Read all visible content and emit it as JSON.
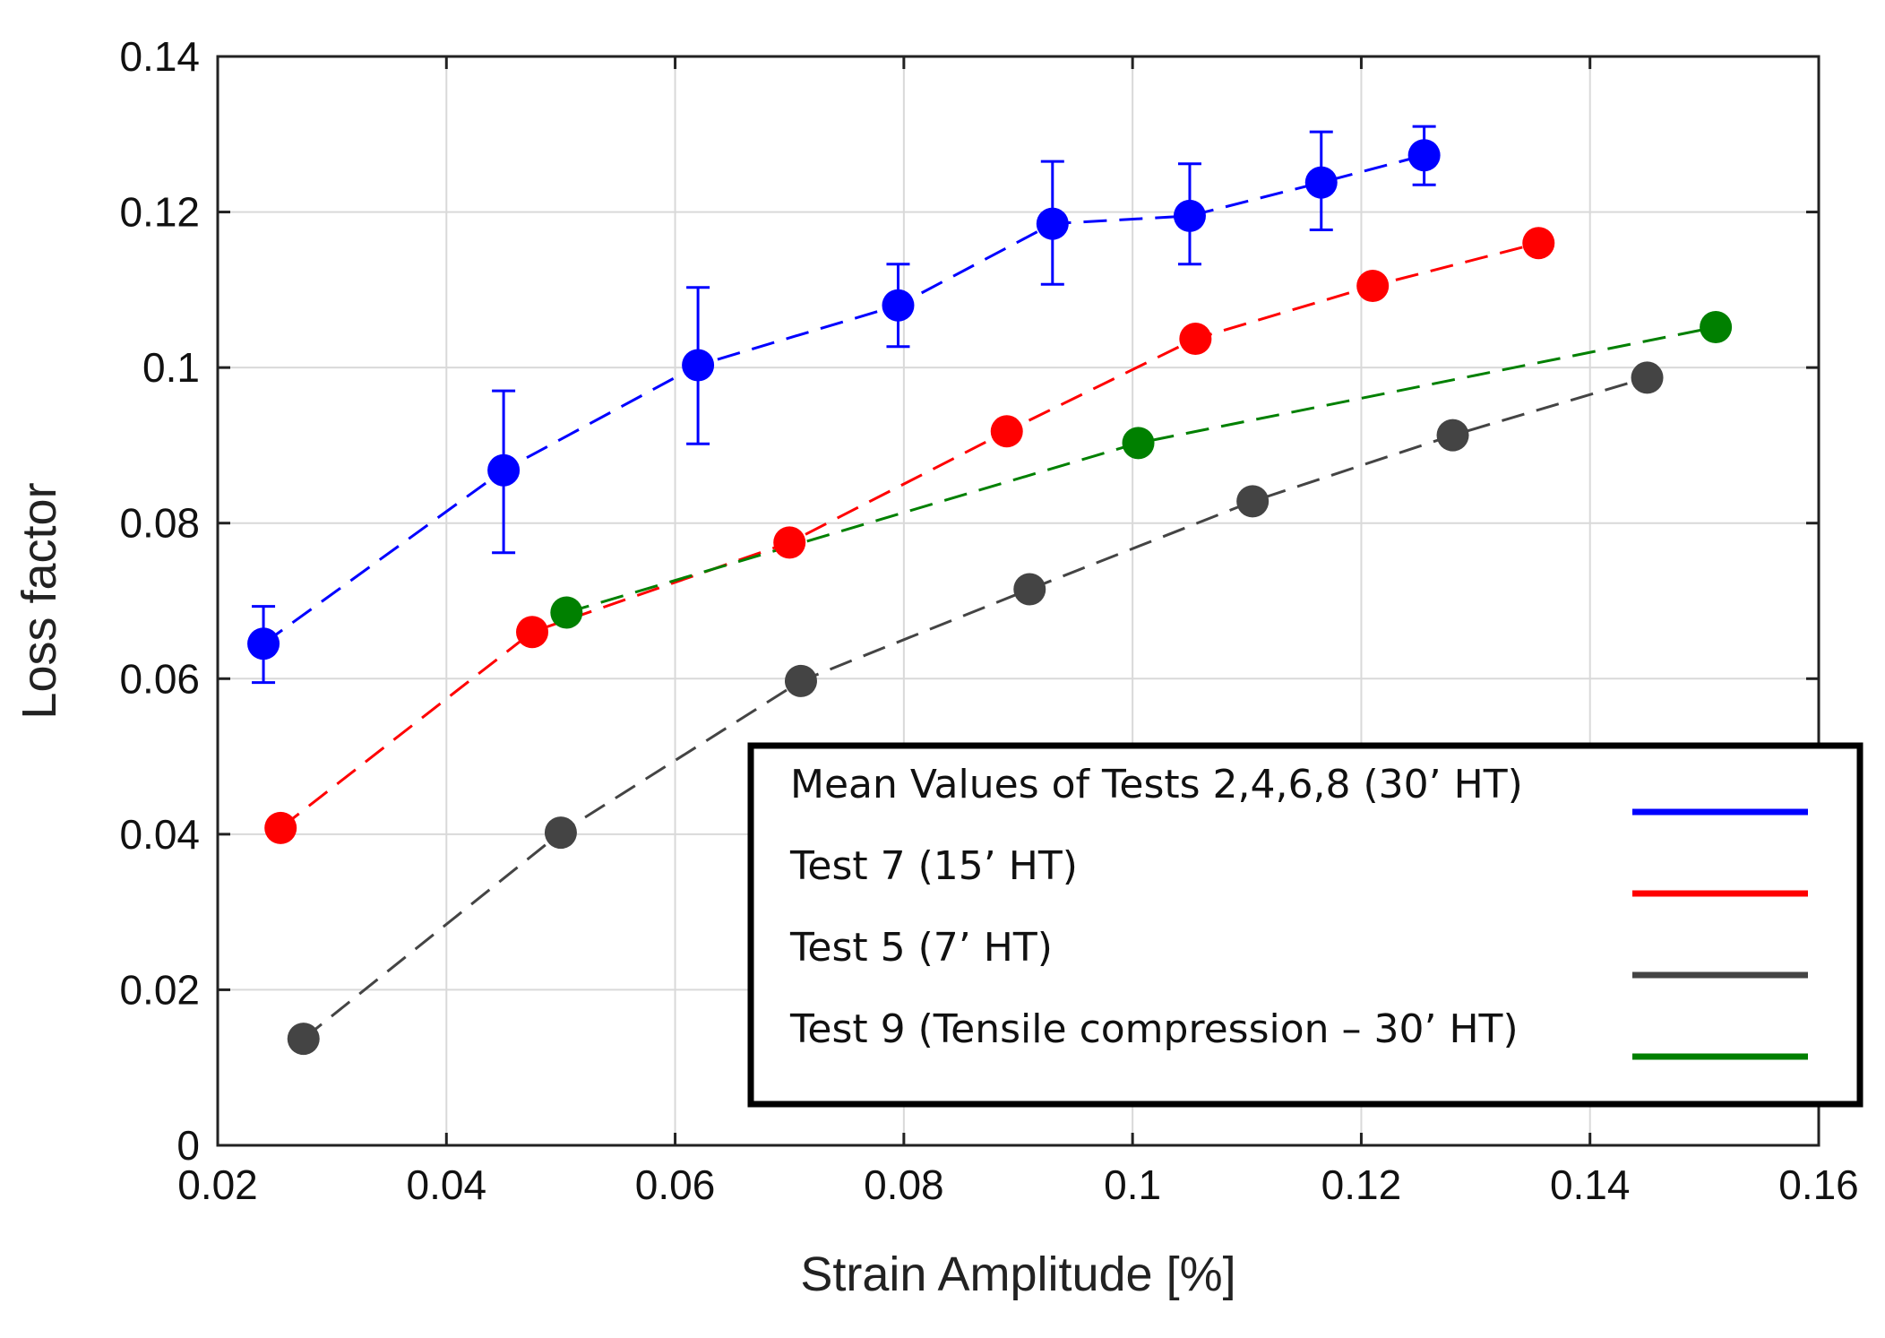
{
  "chart_data": {
    "type": "line",
    "xlabel": "Strain Amplitude [%]",
    "ylabel": "Loss factor",
    "xlim": [
      0.02,
      0.16
    ],
    "ylim": [
      0,
      0.14
    ],
    "x_ticks": [
      "0.02",
      "0.04",
      "0.06",
      "0.08",
      "0.1",
      "0.12",
      "0.14",
      "0.16"
    ],
    "y_ticks": [
      "0",
      "0.02",
      "0.04",
      "0.06",
      "0.08",
      "0.1",
      "0.12",
      "0.14"
    ],
    "grid": true,
    "legend_position": "bottom-right",
    "series": [
      {
        "name": "Mean Values of Tests 2,4,6,8 (30’ HT)",
        "color": "#0000ff",
        "line_style": "dashed",
        "points": [
          {
            "x": 0.024,
            "y": 0.0645,
            "err_low": 0.0595,
            "err_high": 0.0693
          },
          {
            "x": 0.045,
            "y": 0.0868,
            "err_low": 0.0762,
            "err_high": 0.097
          },
          {
            "x": 0.062,
            "y": 0.1003,
            "err_low": 0.0902,
            "err_high": 0.1103
          },
          {
            "x": 0.0795,
            "y": 0.108,
            "err_low": 0.1027,
            "err_high": 0.1133
          },
          {
            "x": 0.093,
            "y": 0.1185,
            "err_low": 0.1107,
            "err_high": 0.1265
          },
          {
            "x": 0.105,
            "y": 0.1195,
            "err_low": 0.1133,
            "err_high": 0.1262
          },
          {
            "x": 0.1165,
            "y": 0.1238,
            "err_low": 0.1177,
            "err_high": 0.1303
          },
          {
            "x": 0.1255,
            "y": 0.1273,
            "err_low": 0.1235,
            "err_high": 0.131
          }
        ]
      },
      {
        "name": "Test 7 (15’ HT)",
        "color": "#ff0000",
        "line_style": "dashed",
        "points": [
          {
            "x": 0.0255,
            "y": 0.0408
          },
          {
            "x": 0.0475,
            "y": 0.066
          },
          {
            "x": 0.07,
            "y": 0.0775
          },
          {
            "x": 0.089,
            "y": 0.0918
          },
          {
            "x": 0.1055,
            "y": 0.1037
          },
          {
            "x": 0.121,
            "y": 0.1105
          },
          {
            "x": 0.1355,
            "y": 0.116
          }
        ]
      },
      {
        "name": "Test 5 (7’ HT)",
        "color": "#444444",
        "line_style": "dashed",
        "points": [
          {
            "x": 0.0275,
            "y": 0.0137
          },
          {
            "x": 0.05,
            "y": 0.0402
          },
          {
            "x": 0.071,
            "y": 0.0597
          },
          {
            "x": 0.091,
            "y": 0.0715
          },
          {
            "x": 0.1105,
            "y": 0.0828
          },
          {
            "x": 0.128,
            "y": 0.0913
          },
          {
            "x": 0.145,
            "y": 0.0987
          }
        ]
      },
      {
        "name": "Test 9 (Tensile compression – 30’ HT)",
        "color": "#008000",
        "line_style": "dashed",
        "points": [
          {
            "x": 0.0505,
            "y": 0.0685
          },
          {
            "x": 0.1005,
            "y": 0.0903
          },
          {
            "x": 0.151,
            "y": 0.1052
          }
        ]
      }
    ]
  }
}
